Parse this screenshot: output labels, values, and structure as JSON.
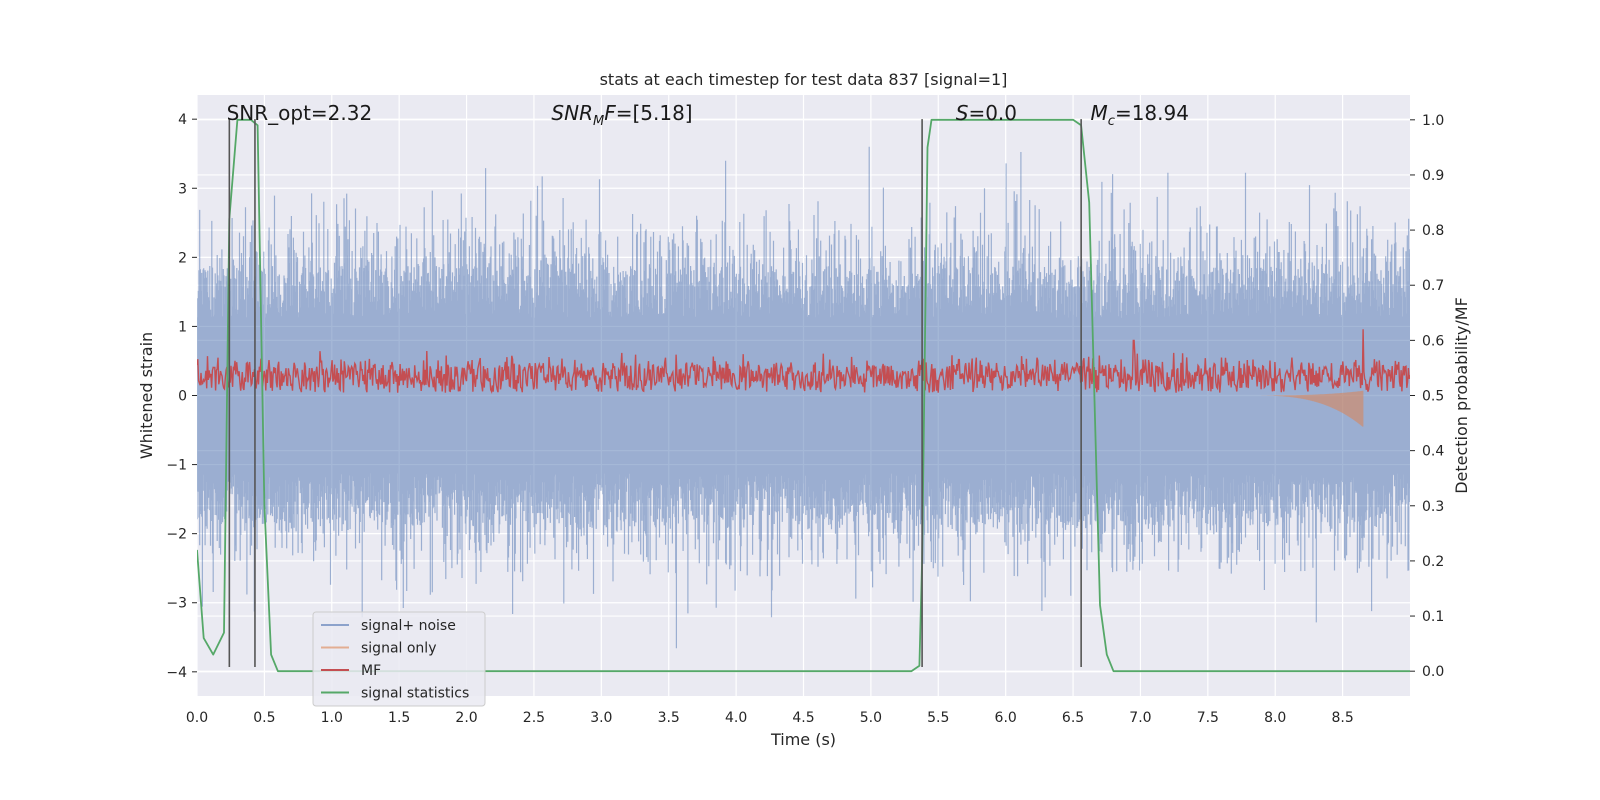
{
  "chart_data": {
    "type": "line",
    "title": "stats at each timestep for test data 837 [signal=1]",
    "xlabel": "Time (s)",
    "ylabel": "Whitened strain",
    "y2label": "Detection probability/MF",
    "xlim": [
      0,
      9.0
    ],
    "ylim": [
      -4.35,
      4.35
    ],
    "y2lim": [
      -0.045,
      1.045
    ],
    "xticks": [
      0.0,
      0.5,
      1.0,
      1.5,
      2.0,
      2.5,
      3.0,
      3.5,
      4.0,
      4.5,
      5.0,
      5.5,
      6.0,
      6.5,
      7.0,
      7.5,
      8.0,
      8.5
    ],
    "xtick_labels": [
      "0.0",
      "0.5",
      "1.0",
      "1.5",
      "2.0",
      "2.5",
      "3.0",
      "3.5",
      "4.0",
      "4.5",
      "5.0",
      "5.5",
      "6.0",
      "6.5",
      "7.0",
      "7.5",
      "8.0",
      "8.5"
    ],
    "yticks": [
      -4,
      -3,
      -2,
      -1,
      0,
      1,
      2,
      3,
      4
    ],
    "ytick_labels": [
      "−4",
      "−3",
      "−2",
      "−1",
      "0",
      "1",
      "2",
      "3",
      "4"
    ],
    "y2ticks": [
      0.0,
      0.1,
      0.2,
      0.3,
      0.4,
      0.5,
      0.6,
      0.7,
      0.8,
      0.9,
      1.0
    ],
    "y2tick_labels": [
      "0.0",
      "0.1",
      "0.2",
      "0.3",
      "0.4",
      "0.5",
      "0.6",
      "0.7",
      "0.8",
      "0.9",
      "1.0"
    ],
    "grid": true,
    "legend_placement": "lower-left",
    "annotations": [
      {
        "id": "snr-opt",
        "text": "SNR_opt=2.32",
        "x": 0.19,
        "y": 4.0
      },
      {
        "id": "snr-mf",
        "text": "SNR_MF=[5.18]",
        "x": 2.6,
        "y": 4.0
      },
      {
        "id": "s",
        "text": "S=0.0",
        "x": 5.6,
        "y": 4.0
      },
      {
        "id": "mc",
        "text": "M_c=18.94",
        "x": 6.6,
        "y": 4.0
      }
    ],
    "vlines": [
      0.24,
      0.43,
      5.38,
      6.56
    ],
    "series": [
      {
        "name": "signal+ noise",
        "axis": "left",
        "color": "#4c72b0",
        "kind": "noise",
        "typical_amplitude": 1.5,
        "peak_range": [
          -3.9,
          3.6
        ]
      },
      {
        "name": "signal only",
        "axis": "left",
        "color": "#dd8452",
        "kind": "chirp",
        "x_start": 7.8,
        "x_end": 8.65,
        "min_value": -0.45
      },
      {
        "name": "MF",
        "axis": "right",
        "color": "#c44e52",
        "kind": "band",
        "base": 0.52,
        "range": [
          0.505,
          0.59
        ],
        "spikes": [
          {
            "x": 6.95,
            "y": 0.6
          },
          {
            "x": 8.65,
            "y": 0.62
          }
        ]
      },
      {
        "name": "signal statistics",
        "axis": "right",
        "color": "#55a868",
        "kind": "line",
        "x": [
          0.0,
          0.05,
          0.12,
          0.2,
          0.24,
          0.3,
          0.4,
          0.45,
          0.5,
          0.55,
          0.6,
          1.0,
          2.0,
          3.0,
          4.0,
          5.0,
          5.3,
          5.36,
          5.38,
          5.42,
          5.45,
          5.5,
          5.7,
          6.0,
          6.4,
          6.5,
          6.56,
          6.62,
          6.7,
          6.75,
          6.8,
          7.0,
          8.0,
          8.5,
          9.0
        ],
        "y": [
          0.22,
          0.06,
          0.03,
          0.07,
          0.82,
          1.0,
          1.0,
          0.99,
          0.3,
          0.03,
          0.0,
          0.0,
          0.0,
          0.0,
          0.0,
          0.0,
          0.0,
          0.01,
          0.2,
          0.95,
          1.0,
          1.0,
          1.0,
          1.0,
          1.0,
          1.0,
          0.99,
          0.85,
          0.12,
          0.03,
          0.0,
          0.0,
          0.0,
          0.0,
          0.0
        ]
      }
    ]
  }
}
